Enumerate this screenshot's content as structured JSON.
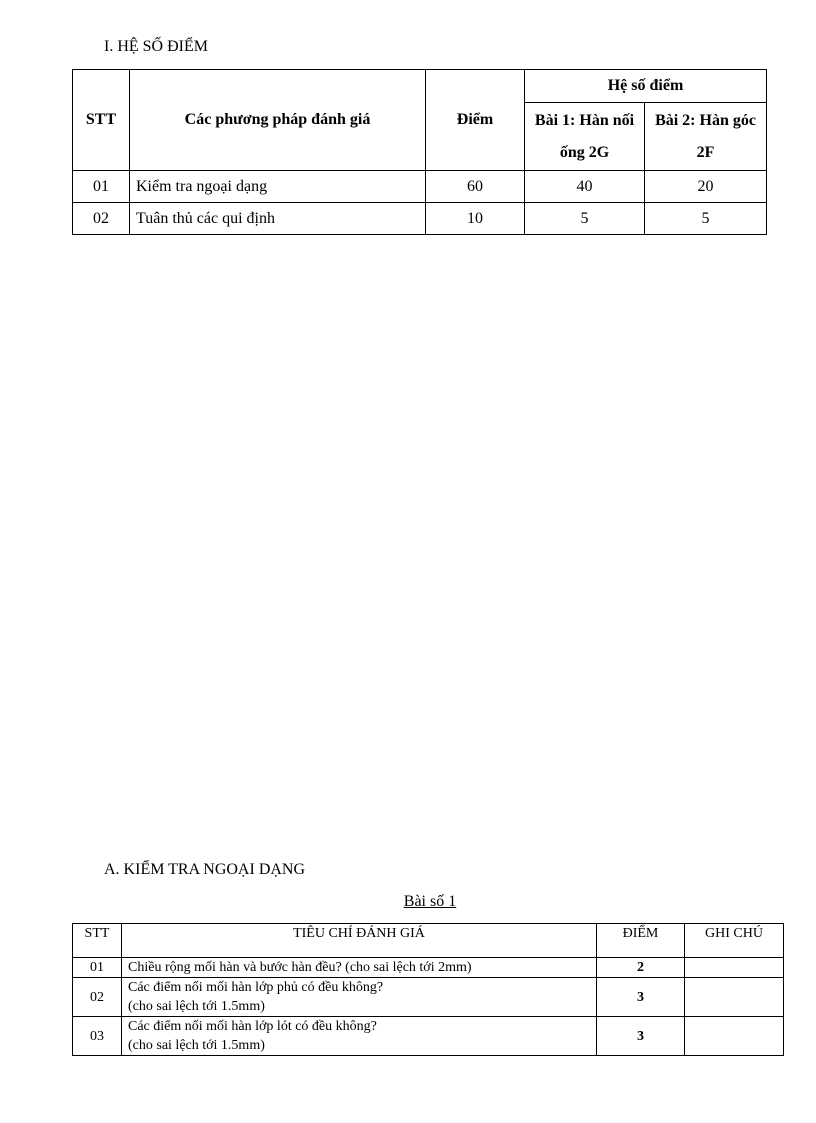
{
  "section1": {
    "title": "I. HỆ SỐ ĐIỂM",
    "headers": {
      "stt": "STT",
      "method": "Các phương pháp đánh giá",
      "score": "Điểm",
      "coef": "Hệ số điểm",
      "bai1": "Bài 1: Hàn nối ống 2G",
      "bai2": "Bài 2: Hàn góc 2F"
    },
    "rows": [
      {
        "stt": "01",
        "method": "Kiểm tra ngoại dạng",
        "score": "60",
        "bai1": "40",
        "bai2": "20"
      },
      {
        "stt": "02",
        "method": "Tuân thủ các qui định",
        "score": "10",
        "bai1": "5",
        "bai2": "5"
      }
    ]
  },
  "section2": {
    "title": "A. KIỂM TRA NGOẠI DẠNG",
    "subtitle": "Bài số 1",
    "headers": {
      "stt": "STT",
      "criteria": "TIÊU CHÍ ĐÁNH GIÁ",
      "score": "ĐIỂM",
      "note": "GHI CHÚ"
    },
    "rows": [
      {
        "stt": "01",
        "line1": "Chiều rộng mối hàn và bước hàn đều? (cho sai lệch tới 2mm)",
        "line2": "",
        "score": "2",
        "note": ""
      },
      {
        "stt": "02",
        "line1": "Các điểm nối mối hàn lớp phủ có đều không?",
        "line2": "(cho sai lệch tới 1.5mm)",
        "score": "3",
        "note": ""
      },
      {
        "stt": "03",
        "line1": "Các điểm nối mối hàn lớp lót có đều không?",
        "line2": "(cho sai lệch tới 1.5mm)",
        "score": "3",
        "note": ""
      }
    ]
  }
}
